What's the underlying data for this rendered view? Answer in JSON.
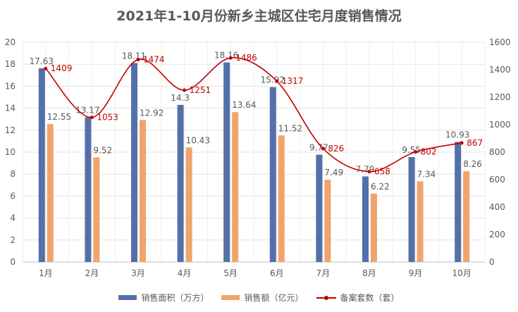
{
  "chart_data": {
    "type": "bar",
    "title": "2021年1-10月份新乡主城区住宅月度销售情况",
    "categories": [
      "1月",
      "2月",
      "3月",
      "4月",
      "5月",
      "6月",
      "7月",
      "8月",
      "9月",
      "10月"
    ],
    "series": [
      {
        "name": "销售面积（万方）",
        "type": "bar",
        "axis": "left",
        "color": "#5470A8",
        "values": [
          17.63,
          13.17,
          18.11,
          14.3,
          18.16,
          15.92,
          9.77,
          7.79,
          9.55,
          10.93
        ]
      },
      {
        "name": "销售额（亿元）",
        "type": "bar",
        "axis": "left",
        "color": "#F0A46C",
        "values": [
          12.55,
          9.52,
          12.92,
          10.43,
          13.64,
          11.52,
          7.49,
          6.22,
          7.34,
          8.26
        ]
      },
      {
        "name": "备案套数（套）",
        "type": "line",
        "smooth": true,
        "axis": "right",
        "color": "#C00000",
        "values": [
          1409,
          1053,
          1474,
          1251,
          1486,
          1317,
          826,
          658,
          802,
          867
        ]
      }
    ],
    "ylim": [
      0,
      20
    ],
    "yticks": [
      0,
      2,
      4,
      6,
      8,
      10,
      12,
      14,
      16,
      18,
      20
    ],
    "y2lim": [
      0,
      1600
    ],
    "y2ticks": [
      0,
      200,
      400,
      600,
      800,
      1000,
      1200,
      1400,
      1600
    ],
    "grid": true,
    "legend": "bottom"
  }
}
